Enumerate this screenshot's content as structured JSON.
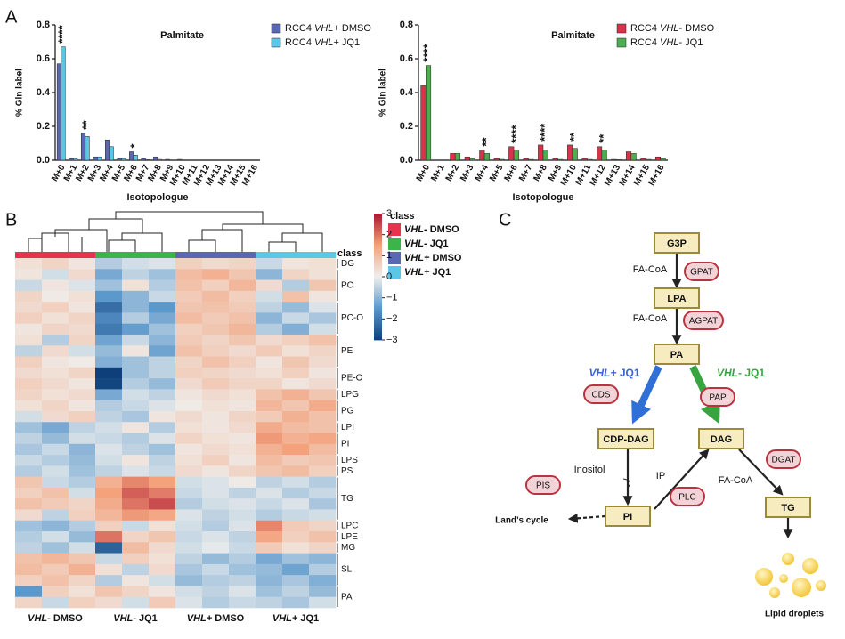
{
  "panels": [
    "A",
    "B",
    "C"
  ],
  "chart_data": [
    {
      "type": "bar",
      "title": "Palmitate",
      "y_label": "% Gln label",
      "x_label": "Isotopologue",
      "categories": [
        "M+0",
        "M+1",
        "M+2",
        "M+3",
        "M+4",
        "M+5",
        "M+6",
        "M+7",
        "M+8",
        "M+9",
        "M+10",
        "M+11",
        "M+12",
        "M+13",
        "M+14",
        "M+15",
        "M+16"
      ],
      "series": [
        {
          "name": "RCC4 VHL+ DMSO",
          "color": "#5a68b4",
          "values": [
            0.57,
            0.01,
            0.16,
            0.02,
            0.12,
            0.01,
            0.05,
            0.01,
            0.02,
            0.005,
            0.005,
            0,
            0,
            0,
            0,
            0,
            0
          ]
        },
        {
          "name": "RCC4 VHL+ JQ1",
          "color": "#5cc6e6",
          "values": [
            0.67,
            0.01,
            0.14,
            0.02,
            0.08,
            0.01,
            0.03,
            0.003,
            0.005,
            0,
            0,
            0,
            0,
            0,
            0,
            0,
            0
          ]
        }
      ],
      "annotations": [
        {
          "x": "M+0",
          "text": "****"
        },
        {
          "x": "M+2",
          "text": "**"
        },
        {
          "x": "M+6",
          "text": "*"
        }
      ],
      "ylim": [
        0,
        0.8
      ],
      "yticks": [
        {
          "value": 0,
          "label": "0.0"
        },
        0.2,
        0.4,
        0.6,
        0.8
      ],
      "legend": "upper right"
    },
    {
      "type": "bar",
      "title": "Palmitate",
      "y_label": "% Gln label",
      "x_label": "Isotopologue",
      "categories": [
        "M+0",
        "M+1",
        "M+2",
        "M+3",
        "M+4",
        "M+5",
        "M+6",
        "M+7",
        "M+8",
        "M+9",
        "M+10",
        "M+11",
        "M+12",
        "M+13",
        "M+14",
        "M+15",
        "M+16"
      ],
      "series": [
        {
          "name": "RCC4 VHL- DMSO",
          "color": "#d9324b",
          "values": [
            0.44,
            0,
            0.04,
            0.02,
            0.06,
            0.01,
            0.08,
            0.01,
            0.09,
            0.01,
            0.09,
            0.01,
            0.08,
            0.005,
            0.05,
            0.01,
            0.02
          ]
        },
        {
          "name": "RCC4 VHL- JQ1",
          "color": "#4cae4f",
          "values": [
            0.56,
            0,
            0.04,
            0.01,
            0.04,
            0.005,
            0.06,
            0.005,
            0.06,
            0.005,
            0.07,
            0.005,
            0.06,
            0.003,
            0.04,
            0.005,
            0.01
          ]
        }
      ],
      "annotations": [
        {
          "x": "M+0",
          "text": "****"
        },
        {
          "x": "M+4",
          "text": "**"
        },
        {
          "x": "M+6",
          "text": "****"
        },
        {
          "x": "M+8",
          "text": "****"
        },
        {
          "x": "M+10",
          "text": "**"
        },
        {
          "x": "M+12",
          "text": "**"
        }
      ],
      "ylim": [
        0,
        0.8
      ],
      "yticks": [
        {
          "value": 0,
          "label": "0.0"
        },
        0.2,
        0.4,
        0.6,
        0.8
      ],
      "legend": "upper right"
    },
    {
      "type": "heatmap",
      "legend_title": "class",
      "row_label_title": "class",
      "column_groups": [
        {
          "name": "VHL- DMSO",
          "color": "#e8334f"
        },
        {
          "name": "VHL- JQ1",
          "color": "#3bb54a"
        },
        {
          "name": "VHL+ DMSO",
          "color": "#5a68b4"
        },
        {
          "name": "VHL+ JQ1",
          "color": "#5cc6e6"
        }
      ],
      "clim": [
        -3,
        3
      ],
      "colors": [
        "#0e3f7a",
        "#5b98cc",
        "#efefed",
        "#f3a27c",
        "#ad1530"
      ],
      "cticks": [
        3,
        2,
        1,
        0,
        {
          "value": -1,
          "label": "−1"
        },
        {
          "value": -2,
          "label": "−2"
        },
        {
          "value": -3,
          "label": "−3"
        }
      ],
      "row_classes": [
        {
          "label": "DG",
          "rows": [
            [
              0.3,
              0.5,
              0.2,
              -0.6,
              -0.3,
              -0.2,
              0.6,
              0.4,
              0.5,
              -0.4,
              0.2,
              0.3
            ]
          ]
        },
        {
          "label": "PC",
          "rows": [
            [
              0.2,
              -0.3,
              0.4,
              -1.2,
              -0.5,
              -0.8,
              1.0,
              1.2,
              0.8,
              -1.0,
              0.5,
              0.3
            ],
            [
              -0.4,
              0.2,
              -0.2,
              -0.8,
              0.3,
              -0.6,
              0.9,
              0.6,
              1.1,
              0.4,
              -0.6,
              0.8
            ],
            [
              0.5,
              0.1,
              0.3,
              -1.5,
              -1.0,
              -0.4,
              0.7,
              1.0,
              0.6,
              -0.3,
              0.9,
              0.2
            ]
          ]
        },
        {
          "label": "PC-O",
          "rows": [
            [
              0.4,
              0.6,
              0.2,
              -2.2,
              -1.0,
              -1.5,
              0.8,
              0.9,
              0.7,
              -0.5,
              -0.9,
              -0.2
            ],
            [
              0.6,
              0.3,
              0.5,
              -1.8,
              -0.6,
              -1.2,
              1.0,
              0.7,
              0.9,
              -1.0,
              -0.4,
              -0.7
            ],
            [
              0.2,
              0.5,
              0.4,
              -2.0,
              -1.4,
              -0.8,
              0.6,
              0.8,
              1.1,
              -0.6,
              -1.1,
              -0.3
            ]
          ]
        },
        {
          "label": "PE",
          "rows": [
            [
              0.3,
              -0.6,
              0.5,
              -1.3,
              -0.4,
              -1.0,
              0.7,
              0.5,
              0.8,
              0.4,
              0.6,
              0.9
            ],
            [
              -0.5,
              0.4,
              -0.3,
              -0.9,
              0.2,
              -1.3,
              0.9,
              0.6,
              0.4,
              0.7,
              0.3,
              0.5
            ],
            [
              0.6,
              0.2,
              0.1,
              -1.1,
              -0.8,
              -0.5,
              0.5,
              0.9,
              0.6,
              0.2,
              0.8,
              0.4
            ]
          ]
        },
        {
          "label": "PE-O",
          "rows": [
            [
              0.4,
              0.3,
              0.5,
              -3.0,
              -0.8,
              -0.5,
              0.6,
              0.5,
              0.4,
              0.3,
              0.6,
              0.2
            ],
            [
              0.6,
              0.4,
              0.2,
              -2.9,
              -0.6,
              -0.9,
              0.4,
              0.7,
              0.5,
              0.5,
              0.2,
              0.4
            ]
          ]
        },
        {
          "label": "LPG",
          "rows": [
            [
              0.5,
              0.3,
              0.4,
              -1.2,
              -0.3,
              -0.5,
              0.2,
              0.4,
              0.3,
              0.9,
              1.2,
              0.8
            ]
          ]
        },
        {
          "label": "PG",
          "rows": [
            [
              0.3,
              0.5,
              0.2,
              -0.6,
              -0.4,
              -0.2,
              0.1,
              0.3,
              0.2,
              1.1,
              0.8,
              1.3
            ],
            [
              -0.3,
              0.4,
              0.6,
              -0.5,
              -0.7,
              0.2,
              0.4,
              0.2,
              0.5,
              0.7,
              1.2,
              0.9
            ]
          ]
        },
        {
          "label": "LPI",
          "rows": [
            [
              -0.8,
              -1.2,
              -0.5,
              -0.3,
              0.2,
              -0.6,
              0.3,
              0.2,
              0.4,
              1.3,
              1.0,
              0.9
            ]
          ]
        },
        {
          "label": "PI",
          "rows": [
            [
              -0.5,
              -0.9,
              -0.3,
              -0.4,
              -0.6,
              -0.2,
              0.5,
              0.3,
              0.2,
              1.6,
              1.2,
              1.4
            ],
            [
              -0.7,
              -0.4,
              -1.0,
              -0.2,
              -0.5,
              -0.8,
              0.2,
              0.4,
              0.3,
              1.2,
              1.5,
              1.0
            ]
          ]
        },
        {
          "label": "LPS",
          "rows": [
            [
              -0.4,
              -0.6,
              -0.9,
              -0.3,
              0.2,
              -0.5,
              0.3,
              0.6,
              0.2,
              1.0,
              0.7,
              0.8
            ]
          ]
        },
        {
          "label": "PS",
          "rows": [
            [
              -0.6,
              -0.3,
              -0.8,
              -0.5,
              -0.2,
              -0.4,
              0.4,
              0.2,
              0.5,
              0.8,
              1.0,
              0.6
            ]
          ]
        },
        {
          "label": "TG",
          "rows": [
            [
              0.8,
              -0.4,
              -0.6,
              1.2,
              1.8,
              1.5,
              -0.3,
              -0.2,
              0.1,
              -0.5,
              -0.3,
              -0.6
            ],
            [
              0.6,
              0.9,
              -0.3,
              1.5,
              2.2,
              1.9,
              -0.4,
              -0.2,
              -0.5,
              -0.2,
              -0.6,
              -0.4
            ],
            [
              0.9,
              0.7,
              0.5,
              1.3,
              2.0,
              2.4,
              -0.6,
              -0.3,
              -0.2,
              -0.4,
              -0.2,
              -0.7
            ],
            [
              0.4,
              -0.5,
              0.6,
              1.1,
              1.6,
              1.4,
              -0.2,
              -0.5,
              -0.3,
              -0.6,
              -0.4,
              -0.3
            ]
          ]
        },
        {
          "label": "LPC",
          "rows": [
            [
              -0.8,
              -1.0,
              -0.6,
              0.6,
              -0.4,
              0.3,
              -0.3,
              -0.6,
              -0.2,
              1.8,
              0.7,
              0.5
            ]
          ]
        },
        {
          "label": "LPE",
          "rows": [
            [
              -0.6,
              -0.3,
              -0.9,
              2.0,
              0.5,
              0.8,
              -0.4,
              -0.2,
              -0.5,
              1.4,
              0.6,
              0.9
            ]
          ]
        },
        {
          "label": "MG",
          "rows": [
            [
              -0.5,
              -0.8,
              -0.3,
              -2.4,
              1.0,
              0.4,
              -0.3,
              -0.1,
              -0.4,
              0.7,
              0.3,
              0.5
            ]
          ]
        },
        {
          "label": "SL",
          "rows": [
            [
              0.9,
              1.1,
              0.8,
              -0.4,
              0.6,
              0.3,
              -0.5,
              -0.9,
              -0.6,
              -1.2,
              -0.8,
              -1.0
            ],
            [
              1.0,
              0.7,
              1.2,
              0.3,
              -0.5,
              0.4,
              -0.7,
              -0.4,
              -0.8,
              -0.9,
              -1.3,
              -0.6
            ],
            [
              0.6,
              0.9,
              0.5,
              -0.6,
              0.2,
              -0.3,
              -0.9,
              -0.6,
              -0.5,
              -1.0,
              -0.7,
              -1.1
            ]
          ]
        },
        {
          "label": "PA",
          "rows": [
            [
              -1.5,
              0.6,
              0.3,
              0.8,
              0.5,
              0.2,
              -0.3,
              -0.5,
              -0.2,
              -0.8,
              -0.5,
              -0.9
            ],
            [
              0.5,
              -0.4,
              0.6,
              0.4,
              -0.3,
              0.7,
              -0.2,
              -0.6,
              -0.4,
              -0.5,
              -0.7,
              -0.3
            ]
          ]
        }
      ]
    }
  ],
  "diagram": {
    "nodes": [
      "G3P",
      "LPA",
      "PA",
      "CDP-DAG",
      "DAG",
      "PI",
      "TG"
    ],
    "enzymes": [
      "GPAT",
      "AGPAT",
      "CDS",
      "PAP",
      "PIS",
      "PLC",
      "DGAT"
    ],
    "labels": [
      "FA-CoA",
      "VHL+ JQ1",
      "VHL- JQ1",
      "Inositol",
      "IP",
      "Land’s cycle",
      "Lipid droplets"
    ]
  }
}
